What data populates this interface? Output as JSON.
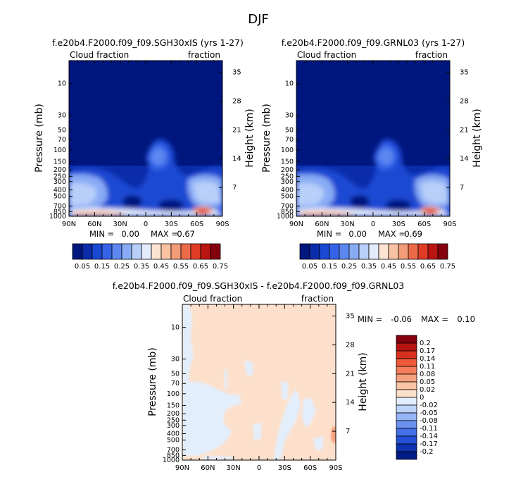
{
  "figure": {
    "season_title": "DJF"
  },
  "chart_data": [
    {
      "type": "heatmap",
      "title": "f.e20b4.F2000.f09_f09.SGH30xIS (yrs 1-27)",
      "left_label": "Cloud fraction",
      "right_label": "fraction",
      "xlabel": "",
      "ylabel": "Pressure (mb)",
      "ylabel_right": "Height (km)",
      "x_ticks": [
        "90N",
        "60N",
        "30N",
        "0",
        "30S",
        "60S",
        "90S"
      ],
      "y_ticks": [
        "10",
        "30",
        "50",
        "70",
        "100",
        "150",
        "200",
        "250",
        "300",
        "400",
        "500",
        "700",
        "850",
        "1000"
      ],
      "height_ticks": [
        "35",
        "28",
        "21",
        "14",
        "7"
      ],
      "stats": {
        "min_label": "MIN =",
        "min": "0.00",
        "max_label": "MAX =",
        "max": "0.67"
      },
      "colorbar_labels": [
        "0.05",
        "0.15",
        "0.25",
        "0.35",
        "0.45",
        "0.55",
        "0.65",
        "0.75"
      ],
      "colorbar_colors": [
        "#00167f",
        "#0a2cab",
        "#1b48d3",
        "#3563e8",
        "#5d87f0",
        "#88abf5",
        "#b8cff9",
        "#e2ecfc",
        "#fde3d1",
        "#f9c2a3",
        "#f39c78",
        "#ec6a47",
        "#e03c25",
        "#bb1512",
        "#85000d"
      ]
    },
    {
      "type": "heatmap",
      "title": "f.e20b4.F2000.f09_f09.GRNL03 (yrs 1-27)",
      "left_label": "Cloud fraction",
      "right_label": "fraction",
      "xlabel": "",
      "ylabel": "Pressure (mb)",
      "ylabel_right": "Height (km)",
      "x_ticks": [
        "90N",
        "60N",
        "30N",
        "0",
        "30S",
        "60S",
        "90S"
      ],
      "y_ticks": [
        "10",
        "30",
        "50",
        "70",
        "100",
        "150",
        "200",
        "250",
        "300",
        "400",
        "500",
        "700",
        "850",
        "1000"
      ],
      "height_ticks": [
        "35",
        "28",
        "21",
        "14",
        "7"
      ],
      "stats": {
        "min_label": "MIN =",
        "min": "0.00",
        "max_label": "MAX =",
        "max": "0.69"
      },
      "colorbar_labels": [
        "0.05",
        "0.15",
        "0.25",
        "0.35",
        "0.45",
        "0.55",
        "0.65",
        "0.75"
      ],
      "colorbar_colors": [
        "#00167f",
        "#0a2cab",
        "#1b48d3",
        "#3563e8",
        "#5d87f0",
        "#88abf5",
        "#b8cff9",
        "#e2ecfc",
        "#fde3d1",
        "#f9c2a3",
        "#f39c78",
        "#ec6a47",
        "#e03c25",
        "#bb1512",
        "#85000d"
      ]
    },
    {
      "type": "heatmap",
      "title": "f.e20b4.F2000.f09_f09.SGH30xIS - f.e20b4.F2000.f09_f09.GRNL03",
      "left_label": "Cloud fraction",
      "right_label": "fraction",
      "xlabel": "",
      "ylabel": "Pressure (mb)",
      "ylabel_right": "Height (km)",
      "x_ticks": [
        "90N",
        "60N",
        "30N",
        "0",
        "30S",
        "60S",
        "90S"
      ],
      "y_ticks": [
        "10",
        "30",
        "50",
        "70",
        "100",
        "150",
        "200",
        "250",
        "300",
        "400",
        "500",
        "700",
        "850",
        "1000"
      ],
      "height_ticks": [
        "35",
        "28",
        "21",
        "14",
        "7"
      ],
      "stats": {
        "min_label": "MIN =",
        "min": "-0.06",
        "max_label": "MAX =",
        "max": "0.10"
      },
      "colorbar_labels": [
        "0.2",
        "0.17",
        "0.14",
        "0.11",
        "0.08",
        "0.05",
        "0.02",
        "0",
        "-0.02",
        "-0.05",
        "-0.08",
        "-0.11",
        "-0.14",
        "-0.17",
        "-0.2"
      ],
      "colorbar_colors": [
        "#85000d",
        "#b8140f",
        "#d7301f",
        "#ef5a3a",
        "#f47d5a",
        "#f6a07e",
        "#f9c4a5",
        "#fde0cb",
        "#e3eefc",
        "#bcd4f9",
        "#95b5f6",
        "#6b91f1",
        "#4470e8",
        "#2250d6",
        "#0e33b0",
        "#001c82"
      ]
    }
  ]
}
